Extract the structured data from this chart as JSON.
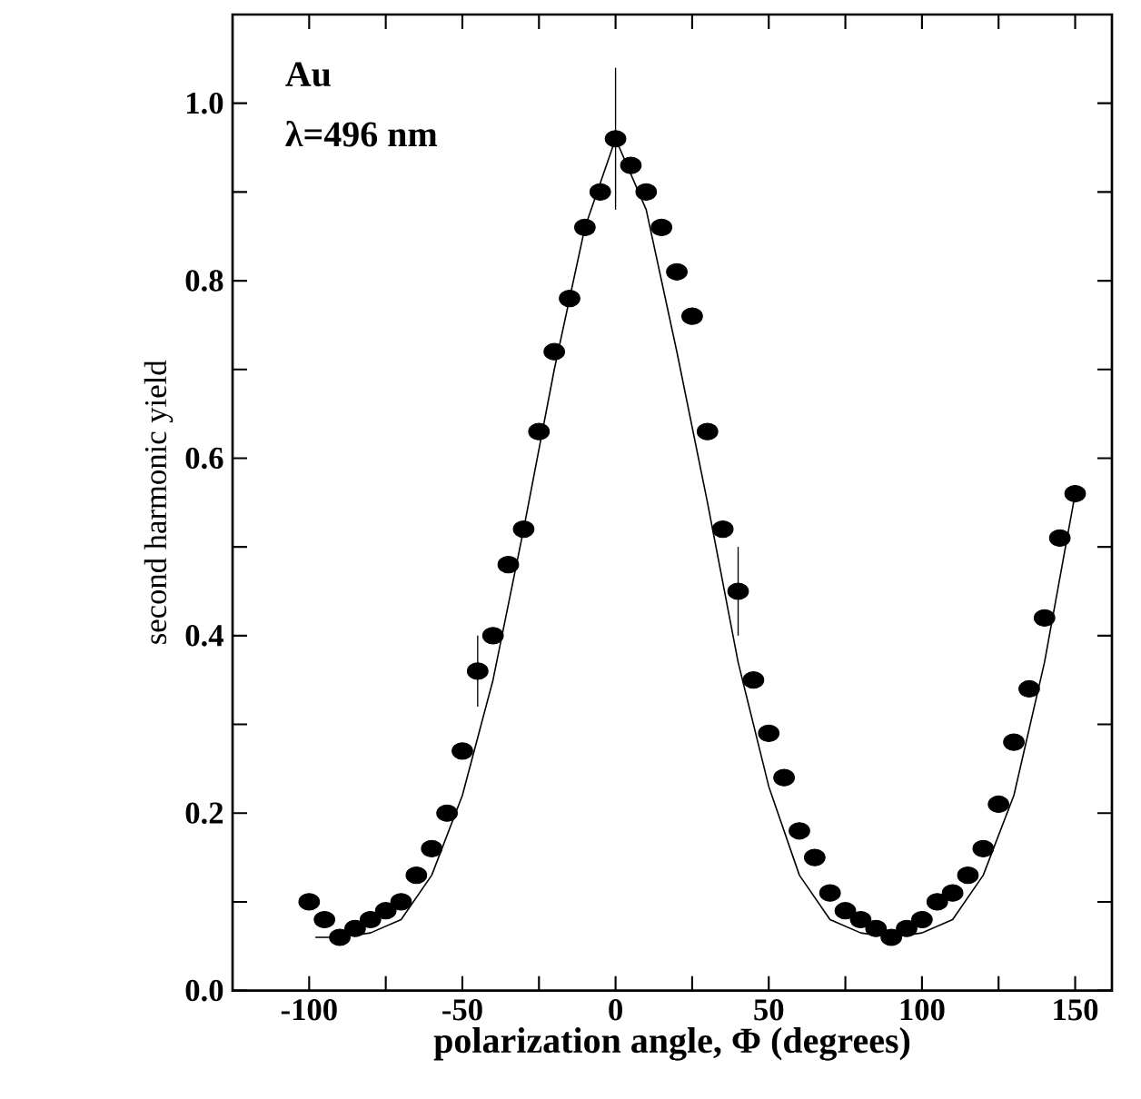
{
  "chart_data": {
    "type": "scatter",
    "xlabel": "polarization angle, Φ (degrees)",
    "ylabel": "second harmonic yield",
    "annotations": [
      "Au",
      "λ=496 nm"
    ],
    "xlim": [
      -125,
      162
    ],
    "ylim": [
      0,
      1.1
    ],
    "xticks": [
      -100,
      {
        "value": -75,
        "label": null
      },
      -50,
      {
        "value": -25,
        "label": null
      },
      0,
      {
        "value": 25,
        "label": null
      },
      50,
      {
        "value": 75,
        "label": null
      },
      100,
      {
        "value": 125,
        "label": null
      },
      150
    ],
    "yticks": [
      {
        "value": 0,
        "label": "0.0"
      },
      {
        "value": 0.1,
        "label": null
      },
      0.2,
      {
        "value": 0.3,
        "label": null
      },
      0.4,
      {
        "value": 0.5,
        "label": null
      },
      0.6,
      {
        "value": 0.7,
        "label": null
      },
      0.8,
      {
        "value": 0.9,
        "label": null
      },
      {
        "value": 1.0,
        "label": "1.0"
      }
    ],
    "series": [
      {
        "marker": "circle",
        "color": "#000000",
        "x": [
          -100,
          -95,
          -90,
          -85,
          -80,
          -75,
          -70,
          -65,
          -60,
          -55,
          -50,
          -45,
          -40,
          -35,
          -30,
          -25,
          -20,
          -15,
          -10,
          -5,
          0,
          5,
          10,
          15,
          20,
          25,
          30,
          35,
          40,
          45,
          50,
          55,
          60,
          65,
          70,
          75,
          80,
          85,
          90,
          95,
          100,
          105,
          110,
          115,
          120,
          125,
          130,
          135,
          140,
          145,
          150
        ],
        "values": [
          0.1,
          0.08,
          0.06,
          0.07,
          0.08,
          0.09,
          0.1,
          0.13,
          0.16,
          0.2,
          0.27,
          0.36,
          0.4,
          0.48,
          0.52,
          0.63,
          0.72,
          0.78,
          0.86,
          0.9,
          0.96,
          0.93,
          0.9,
          0.86,
          0.81,
          0.76,
          0.63,
          0.52,
          0.45,
          0.35,
          0.29,
          0.24,
          0.18,
          0.15,
          0.11,
          0.09,
          0.08,
          0.07,
          0.06,
          0.07,
          0.08,
          0.1,
          0.11,
          0.13,
          0.16,
          0.21,
          0.28,
          0.34,
          0.42,
          0.51,
          0.56
        ],
        "errors": [
          null,
          null,
          null,
          null,
          null,
          null,
          null,
          null,
          null,
          null,
          null,
          0.04,
          null,
          null,
          null,
          null,
          null,
          null,
          null,
          null,
          0.08,
          null,
          null,
          null,
          null,
          null,
          null,
          null,
          0.05,
          null,
          null,
          null,
          null,
          null,
          null,
          null,
          null,
          null,
          null,
          null,
          null,
          null,
          null,
          null,
          null,
          null,
          null,
          null,
          null,
          null,
          null
        ]
      },
      {
        "type": "line",
        "marker": "none",
        "line_style": "solid",
        "color": "#000000",
        "x": [
          -98,
          -90,
          -80,
          -70,
          -60,
          -50,
          -40,
          -30,
          -20,
          -10,
          0,
          10,
          20,
          30,
          40,
          50,
          60,
          70,
          80,
          90,
          100,
          110,
          120,
          130,
          140,
          150
        ],
        "values": [
          0.06,
          0.06,
          0.065,
          0.08,
          0.13,
          0.22,
          0.35,
          0.52,
          0.7,
          0.86,
          0.96,
          0.88,
          0.72,
          0.55,
          0.37,
          0.23,
          0.13,
          0.08,
          0.065,
          0.06,
          0.065,
          0.08,
          0.13,
          0.22,
          0.37,
          0.56
        ]
      }
    ]
  }
}
